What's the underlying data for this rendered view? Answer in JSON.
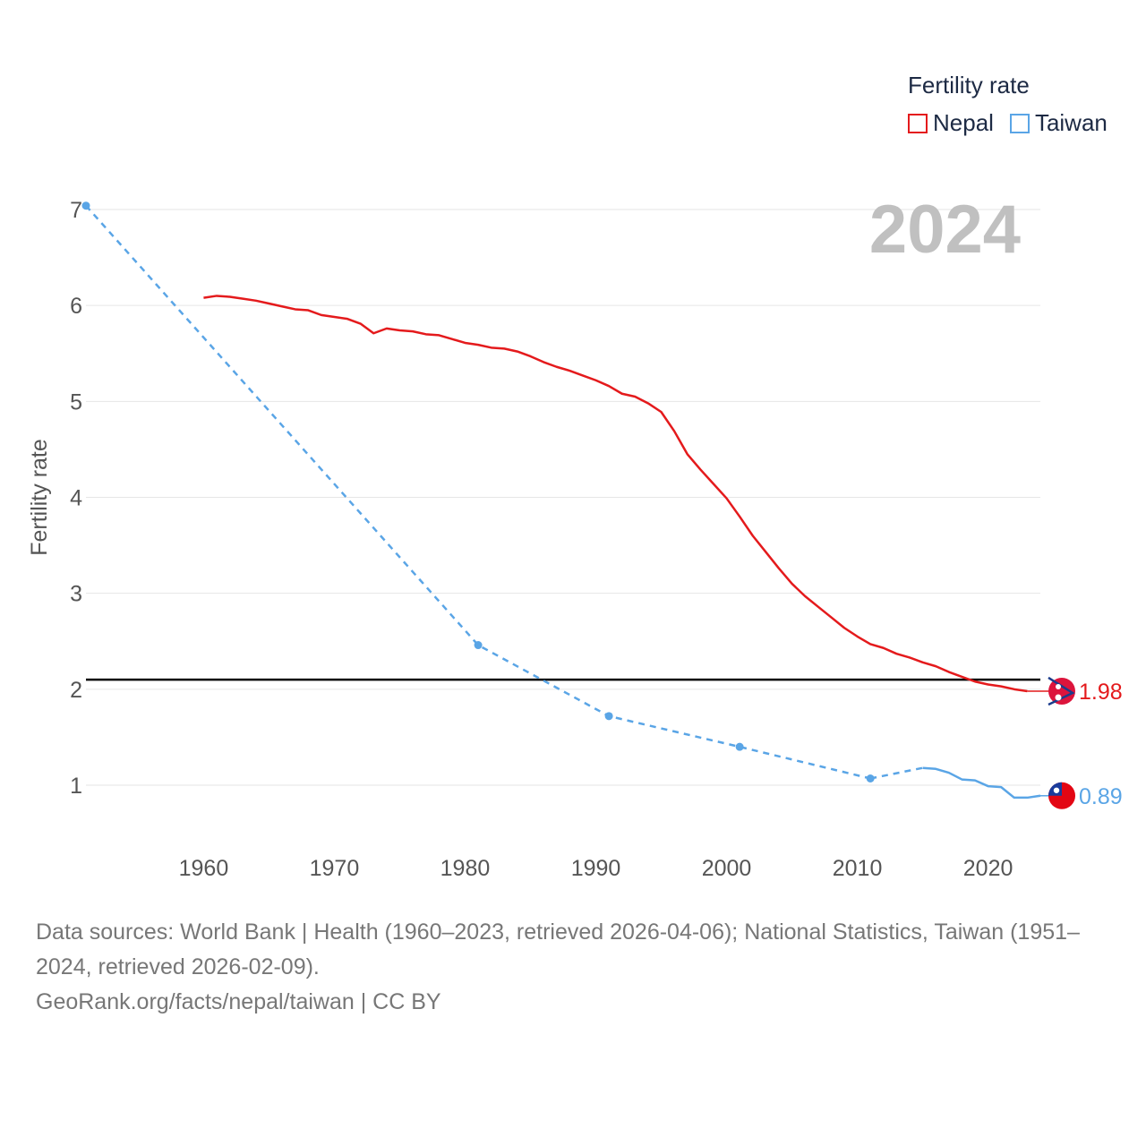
{
  "legend": {
    "title": "Fertility rate",
    "items": [
      {
        "label": "Nepal",
        "color": "#e41a1c"
      },
      {
        "label": "Taiwan",
        "color": "#5aa5e6"
      }
    ]
  },
  "year_label": "2024",
  "sources": {
    "line1": "Data sources: World Bank | Health (1960–2023, retrieved 2026-04-06); National Statistics, Taiwan (1951–2024, retrieved 2026-02-09).",
    "line2": "GeoRank.org/facts/nepal/taiwan | CC BY"
  },
  "chart_data": {
    "type": "line",
    "title": "Fertility rate",
    "xlabel": "",
    "ylabel": "Fertility rate",
    "xlim": [
      1951,
      2024
    ],
    "ylim": [
      0.5,
      7.1
    ],
    "xticks": [
      1960,
      1970,
      1980,
      1990,
      2000,
      2010,
      2020
    ],
    "yticks": [
      1,
      2,
      3,
      4,
      5,
      6,
      7
    ],
    "reference_line": {
      "y": 2.1,
      "color": "#000000"
    },
    "series": [
      {
        "name": "Nepal",
        "color": "#e41a1c",
        "style": "solid",
        "end_label": "1.98",
        "x": [
          1960,
          1961,
          1962,
          1963,
          1964,
          1965,
          1966,
          1967,
          1968,
          1969,
          1970,
          1971,
          1972,
          1973,
          1974,
          1975,
          1976,
          1977,
          1978,
          1979,
          1980,
          1981,
          1982,
          1983,
          1984,
          1985,
          1986,
          1987,
          1988,
          1989,
          1990,
          1991,
          1992,
          1993,
          1994,
          1995,
          1996,
          1997,
          1998,
          1999,
          2000,
          2001,
          2002,
          2003,
          2004,
          2005,
          2006,
          2007,
          2008,
          2009,
          2010,
          2011,
          2012,
          2013,
          2014,
          2015,
          2016,
          2017,
          2018,
          2019,
          2020,
          2021,
          2022,
          2023
        ],
        "y": [
          6.08,
          6.1,
          6.09,
          6.07,
          6.05,
          6.02,
          5.99,
          5.96,
          5.95,
          5.9,
          5.88,
          5.86,
          5.81,
          5.71,
          5.76,
          5.74,
          5.73,
          5.7,
          5.69,
          5.65,
          5.61,
          5.59,
          5.56,
          5.55,
          5.52,
          5.47,
          5.41,
          5.36,
          5.32,
          5.27,
          5.22,
          5.16,
          5.08,
          5.05,
          4.98,
          4.89,
          4.69,
          4.45,
          4.29,
          4.14,
          3.99,
          3.8,
          3.6,
          3.43,
          3.26,
          3.1,
          2.97,
          2.86,
          2.75,
          2.64,
          2.55,
          2.47,
          2.43,
          2.37,
          2.33,
          2.28,
          2.24,
          2.18,
          2.13,
          2.08,
          2.05,
          2.03,
          2.0,
          1.98
        ]
      },
      {
        "name": "Taiwan",
        "color": "#5aa5e6",
        "style": "dashed-then-solid",
        "end_label": "0.89",
        "markers": [
          {
            "x": 1951,
            "y": 7.04
          },
          {
            "x": 1981,
            "y": 2.46
          },
          {
            "x": 1991,
            "y": 1.72
          },
          {
            "x": 2001,
            "y": 1.4
          },
          {
            "x": 2011,
            "y": 1.07
          }
        ],
        "x": [
          2011,
          2012,
          2013,
          2014,
          2015,
          2016,
          2017,
          2018,
          2019,
          2020,
          2021,
          2022,
          2023,
          2024
        ],
        "y": [
          1.07,
          1.27,
          1.07,
          1.17,
          1.18,
          1.17,
          1.13,
          1.06,
          1.05,
          0.99,
          0.98,
          0.87,
          0.87,
          0.89
        ]
      }
    ]
  }
}
